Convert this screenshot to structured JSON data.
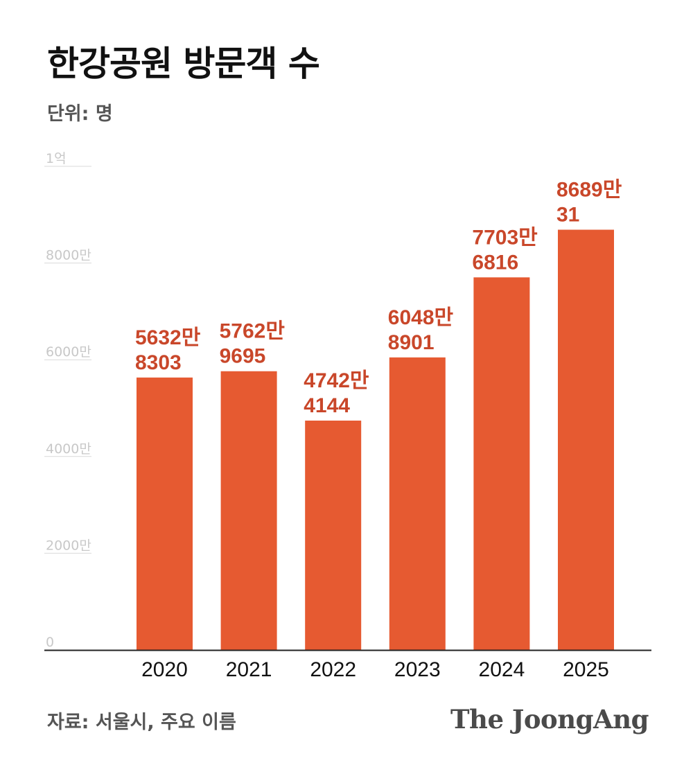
{
  "title": "한강공원 방문객 수",
  "unit_label": "단위: 명",
  "source": "자료: 서울시, 주요 이름",
  "logo_text": "The JoongAng",
  "colors": {
    "bar": "#e65a31",
    "data_label": "#c9472a",
    "grid": "#d9d9d9",
    "tick_label": "#c8c8c8",
    "axis": "#222222"
  },
  "chart_data": {
    "type": "bar",
    "title": "한강공원 방문객 수",
    "xlabel": "",
    "ylabel": "단위: 명",
    "categories": [
      "2020",
      "2021",
      "2022",
      "2023",
      "2024",
      "2025"
    ],
    "values": [
      56328303,
      57629695,
      47424144,
      60488901,
      77036816,
      86890031
    ],
    "data_labels": [
      [
        "5632만",
        "8303"
      ],
      [
        "5762만",
        "9695"
      ],
      [
        "4742만",
        "4144"
      ],
      [
        "6048만",
        "8901"
      ],
      [
        "7703만",
        "6816"
      ],
      [
        "8689만",
        "31"
      ]
    ],
    "ylim": [
      0,
      100000000
    ],
    "yticks": [
      {
        "value": 0,
        "label": "0"
      },
      {
        "value": 20000000,
        "label": "2000만"
      },
      {
        "value": 40000000,
        "label": "4000만"
      },
      {
        "value": 60000000,
        "label": "6000만"
      },
      {
        "value": 80000000,
        "label": "8000만"
      },
      {
        "value": 100000000,
        "label": "1억"
      }
    ],
    "grid": "short-tick-lines"
  }
}
